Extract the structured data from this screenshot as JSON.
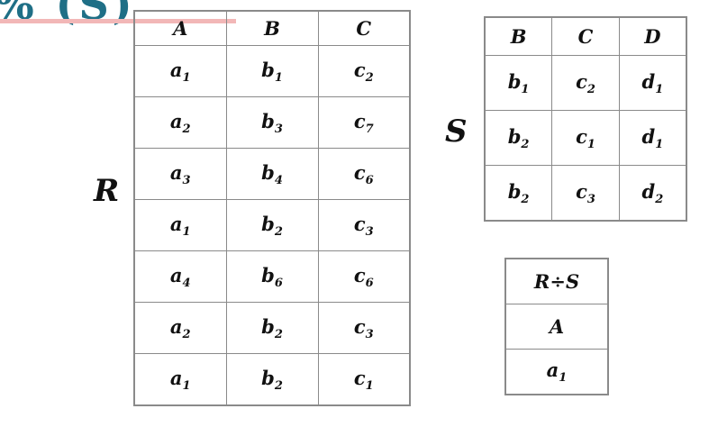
{
  "slide": {
    "title_fragment": "% (S)",
    "relation_r_label": "R",
    "relation_s_label": "S"
  },
  "R": {
    "headers": [
      "A",
      "B",
      "C"
    ],
    "rows": [
      [
        [
          "a",
          "1"
        ],
        [
          "b",
          "1"
        ],
        [
          "c",
          "2"
        ]
      ],
      [
        [
          "a",
          "2"
        ],
        [
          "b",
          "3"
        ],
        [
          "c",
          "7"
        ]
      ],
      [
        [
          "a",
          "3"
        ],
        [
          "b",
          "4"
        ],
        [
          "c",
          "6"
        ]
      ],
      [
        [
          "a",
          "1"
        ],
        [
          "b",
          "2"
        ],
        [
          "c",
          "3"
        ]
      ],
      [
        [
          "a",
          "4"
        ],
        [
          "b",
          "6"
        ],
        [
          "c",
          "6"
        ]
      ],
      [
        [
          "a",
          "2"
        ],
        [
          "b",
          "2"
        ],
        [
          "c",
          "3"
        ]
      ],
      [
        [
          "a",
          "1"
        ],
        [
          "b",
          "2"
        ],
        [
          "c",
          "1"
        ]
      ]
    ]
  },
  "S": {
    "headers": [
      "B",
      "C",
      "D"
    ],
    "rows": [
      [
        [
          "b",
          "1"
        ],
        [
          "c",
          "2"
        ],
        [
          "d",
          "1"
        ]
      ],
      [
        [
          "b",
          "2"
        ],
        [
          "c",
          "1"
        ],
        [
          "d",
          "1"
        ]
      ],
      [
        [
          "b",
          "2"
        ],
        [
          "c",
          "3"
        ],
        [
          "d",
          "2"
        ]
      ]
    ]
  },
  "result": {
    "header": "R÷S",
    "attribute": "A",
    "rows": [
      [
        [
          "a",
          "1"
        ]
      ]
    ]
  }
}
